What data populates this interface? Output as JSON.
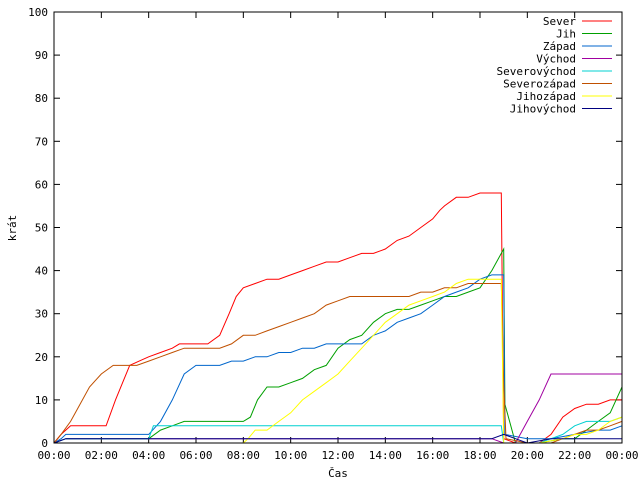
{
  "chart_data": {
    "type": "line",
    "xlabel": "Čas",
    "ylabel": "krát",
    "ylim": [
      0,
      100
    ],
    "xlim": [
      "00:00",
      "24:00"
    ],
    "y_ticks": [
      0,
      10,
      20,
      30,
      40,
      50,
      60,
      70,
      80,
      90,
      100
    ],
    "x_ticks": [
      "00:00",
      "02:00",
      "04:00",
      "06:00",
      "08:00",
      "10:00",
      "12:00",
      "14:00",
      "16:00",
      "18:00",
      "20:00",
      "22:00",
      "00:00"
    ],
    "x_tick_hours": [
      0,
      2,
      4,
      6,
      8,
      10,
      12,
      14,
      16,
      18,
      20,
      22,
      24
    ],
    "legend_position": "top-right",
    "grid": false,
    "series": [
      {
        "name": "Sever",
        "color": "#ff0000",
        "points": [
          [
            0,
            0
          ],
          [
            0.3,
            2
          ],
          [
            0.5,
            3
          ],
          [
            0.7,
            4
          ],
          [
            2.2,
            4
          ],
          [
            2.6,
            10
          ],
          [
            3.2,
            18
          ],
          [
            3.6,
            19
          ],
          [
            4.0,
            20
          ],
          [
            4.5,
            21
          ],
          [
            5.0,
            22
          ],
          [
            5.3,
            23
          ],
          [
            6.0,
            23
          ],
          [
            6.5,
            23
          ],
          [
            7.0,
            25
          ],
          [
            7.4,
            30
          ],
          [
            7.7,
            34
          ],
          [
            8.0,
            36
          ],
          [
            8.5,
            37
          ],
          [
            9.0,
            38
          ],
          [
            9.5,
            38
          ],
          [
            10.0,
            39
          ],
          [
            10.5,
            40
          ],
          [
            11.0,
            41
          ],
          [
            11.5,
            42
          ],
          [
            12.0,
            42
          ],
          [
            12.5,
            43
          ],
          [
            13.0,
            44
          ],
          [
            13.5,
            44
          ],
          [
            14.0,
            45
          ],
          [
            14.5,
            47
          ],
          [
            15.0,
            48
          ],
          [
            15.5,
            50
          ],
          [
            16.0,
            52
          ],
          [
            16.3,
            54
          ],
          [
            16.5,
            55
          ],
          [
            17.0,
            57
          ],
          [
            17.5,
            57
          ],
          [
            18.0,
            58
          ],
          [
            18.9,
            58
          ],
          [
            19.0,
            1
          ],
          [
            19.5,
            0
          ],
          [
            20.5,
            0
          ],
          [
            21.0,
            2
          ],
          [
            21.5,
            6
          ],
          [
            22.0,
            8
          ],
          [
            22.5,
            9
          ],
          [
            23.0,
            9
          ],
          [
            23.5,
            10
          ],
          [
            24,
            10
          ]
        ]
      },
      {
        "name": "Jih",
        "color": "#00a000",
        "points": [
          [
            0,
            0
          ],
          [
            0.5,
            1
          ],
          [
            4.0,
            1
          ],
          [
            4.5,
            3
          ],
          [
            5.0,
            4
          ],
          [
            5.5,
            5
          ],
          [
            6.0,
            5
          ],
          [
            7.0,
            5
          ],
          [
            8.0,
            5
          ],
          [
            8.3,
            6
          ],
          [
            8.6,
            10
          ],
          [
            9.0,
            13
          ],
          [
            9.5,
            13
          ],
          [
            10.0,
            14
          ],
          [
            10.5,
            15
          ],
          [
            11.0,
            17
          ],
          [
            11.5,
            18
          ],
          [
            12.0,
            22
          ],
          [
            12.5,
            24
          ],
          [
            13.0,
            25
          ],
          [
            13.5,
            28
          ],
          [
            14.0,
            30
          ],
          [
            14.5,
            31
          ],
          [
            15.0,
            31
          ],
          [
            15.5,
            32
          ],
          [
            16.0,
            33
          ],
          [
            16.5,
            34
          ],
          [
            17.0,
            34
          ],
          [
            17.5,
            35
          ],
          [
            18.0,
            36
          ],
          [
            18.5,
            40
          ],
          [
            19.0,
            45
          ],
          [
            19.05,
            9
          ],
          [
            19.5,
            0
          ],
          [
            20.5,
            0
          ],
          [
            21.5,
            1
          ],
          [
            22.0,
            1
          ],
          [
            22.5,
            3
          ],
          [
            23.0,
            5
          ],
          [
            23.5,
            7
          ],
          [
            24,
            13
          ]
        ]
      },
      {
        "name": "Západ",
        "color": "#0066cc",
        "points": [
          [
            0,
            0
          ],
          [
            0.3,
            1
          ],
          [
            0.5,
            2
          ],
          [
            3.0,
            2
          ],
          [
            4.0,
            2
          ],
          [
            4.5,
            5
          ],
          [
            5.0,
            10
          ],
          [
            5.5,
            16
          ],
          [
            6.0,
            18
          ],
          [
            7.0,
            18
          ],
          [
            7.5,
            19
          ],
          [
            8.0,
            19
          ],
          [
            8.5,
            20
          ],
          [
            9.0,
            20
          ],
          [
            9.5,
            21
          ],
          [
            10.0,
            21
          ],
          [
            10.5,
            22
          ],
          [
            11.0,
            22
          ],
          [
            11.5,
            23
          ],
          [
            12.0,
            23
          ],
          [
            13.0,
            23
          ],
          [
            13.5,
            25
          ],
          [
            14.0,
            26
          ],
          [
            14.5,
            28
          ],
          [
            15.0,
            29
          ],
          [
            15.5,
            30
          ],
          [
            16.0,
            32
          ],
          [
            16.5,
            34
          ],
          [
            17.0,
            35
          ],
          [
            17.5,
            36
          ],
          [
            18.0,
            38
          ],
          [
            18.5,
            39
          ],
          [
            19.0,
            39
          ],
          [
            19.05,
            2
          ],
          [
            20.0,
            1
          ],
          [
            21.0,
            1
          ],
          [
            22.0,
            2
          ],
          [
            23.0,
            3
          ],
          [
            23.5,
            3
          ],
          [
            24,
            4
          ]
        ]
      },
      {
        "name": "Východ",
        "color": "#a000a0",
        "points": [
          [
            0,
            0
          ],
          [
            0.5,
            1
          ],
          [
            18.5,
            1
          ],
          [
            19.0,
            0
          ],
          [
            19.5,
            0
          ],
          [
            20.0,
            5
          ],
          [
            20.5,
            10
          ],
          [
            21.0,
            16
          ],
          [
            24,
            16
          ]
        ]
      },
      {
        "name": "Severovýchod",
        "color": "#00d0d0",
        "points": [
          [
            0,
            0
          ],
          [
            0.5,
            1
          ],
          [
            4.0,
            1
          ],
          [
            4.2,
            4
          ],
          [
            18.9,
            4
          ],
          [
            19.0,
            0
          ],
          [
            20.5,
            0
          ],
          [
            21.0,
            1
          ],
          [
            21.5,
            2
          ],
          [
            22.0,
            4
          ],
          [
            22.5,
            5
          ],
          [
            23.5,
            5
          ],
          [
            24,
            6
          ]
        ]
      },
      {
        "name": "Severozápad",
        "color": "#c05000",
        "points": [
          [
            0,
            0
          ],
          [
            0.3,
            2
          ],
          [
            0.7,
            5
          ],
          [
            1.0,
            8
          ],
          [
            1.5,
            13
          ],
          [
            2.0,
            16
          ],
          [
            2.5,
            18
          ],
          [
            3.0,
            18
          ],
          [
            3.5,
            18
          ],
          [
            4.0,
            19
          ],
          [
            4.5,
            20
          ],
          [
            5.0,
            21
          ],
          [
            5.5,
            22
          ],
          [
            6.0,
            22
          ],
          [
            6.5,
            22
          ],
          [
            7.0,
            22
          ],
          [
            7.5,
            23
          ],
          [
            8.0,
            25
          ],
          [
            8.5,
            25
          ],
          [
            9.0,
            26
          ],
          [
            9.5,
            27
          ],
          [
            10.0,
            28
          ],
          [
            10.5,
            29
          ],
          [
            11.0,
            30
          ],
          [
            11.5,
            32
          ],
          [
            12.0,
            33
          ],
          [
            12.5,
            34
          ],
          [
            13.0,
            34
          ],
          [
            13.5,
            34
          ],
          [
            14.0,
            34
          ],
          [
            14.5,
            34
          ],
          [
            15.0,
            34
          ],
          [
            15.5,
            35
          ],
          [
            16.0,
            35
          ],
          [
            16.5,
            36
          ],
          [
            17.0,
            36
          ],
          [
            17.5,
            37
          ],
          [
            18.0,
            37
          ],
          [
            18.9,
            37
          ],
          [
            19.0,
            14
          ],
          [
            19.1,
            1
          ],
          [
            20.0,
            0
          ],
          [
            21.0,
            0
          ],
          [
            21.5,
            1
          ],
          [
            22.0,
            2
          ],
          [
            22.5,
            3
          ],
          [
            23.0,
            3
          ],
          [
            23.5,
            4
          ],
          [
            24,
            5
          ]
        ]
      },
      {
        "name": "Jihozápad",
        "color": "#ffff00",
        "points": [
          [
            0,
            0
          ],
          [
            8.0,
            0
          ],
          [
            8.2,
            1
          ],
          [
            8.5,
            3
          ],
          [
            9.0,
            3
          ],
          [
            9.5,
            5
          ],
          [
            10.0,
            7
          ],
          [
            10.5,
            10
          ],
          [
            11.0,
            12
          ],
          [
            11.5,
            14
          ],
          [
            12.0,
            16
          ],
          [
            12.5,
            19
          ],
          [
            13.0,
            22
          ],
          [
            13.5,
            25
          ],
          [
            14.0,
            28
          ],
          [
            14.5,
            30
          ],
          [
            15.0,
            32
          ],
          [
            15.5,
            33
          ],
          [
            16.0,
            34
          ],
          [
            16.5,
            35
          ],
          [
            17.0,
            37
          ],
          [
            17.5,
            38
          ],
          [
            18.0,
            38
          ],
          [
            18.5,
            38
          ],
          [
            18.9,
            38
          ],
          [
            19.0,
            0
          ],
          [
            20.5,
            0
          ],
          [
            21.5,
            1
          ],
          [
            22.0,
            2
          ],
          [
            22.5,
            2
          ],
          [
            23.0,
            3
          ],
          [
            23.5,
            5
          ],
          [
            24,
            6
          ]
        ]
      },
      {
        "name": "Jihovýchod",
        "color": "#000080",
        "points": [
          [
            0,
            0
          ],
          [
            0.5,
            1
          ],
          [
            18.5,
            1
          ],
          [
            19.0,
            2
          ],
          [
            19.5,
            1
          ],
          [
            20.0,
            0
          ],
          [
            21.0,
            1
          ],
          [
            22.0,
            1
          ],
          [
            24,
            1
          ]
        ]
      }
    ]
  }
}
